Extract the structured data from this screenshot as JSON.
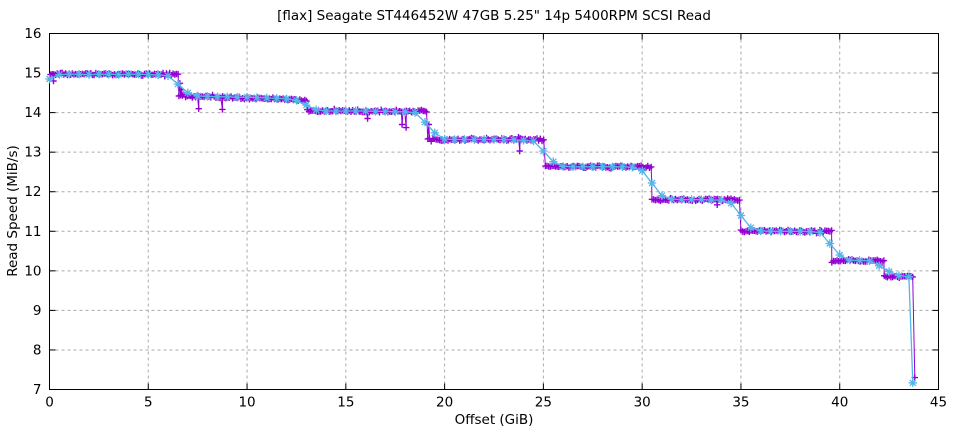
{
  "chart_data": {
    "type": "line",
    "title": "[flax] Seagate ST446452W 47GB 5.25\" 14p 5400RPM SCSI Read",
    "xlabel": "Offset (GiB)",
    "ylabel": "Read Speed (MiB/s)",
    "xlim": [
      0,
      45
    ],
    "ylim": [
      7,
      16
    ],
    "x_ticks": [
      0,
      5,
      10,
      15,
      20,
      25,
      30,
      35,
      40,
      45
    ],
    "y_ticks": [
      7,
      8,
      9,
      10,
      11,
      12,
      13,
      14,
      15,
      16
    ],
    "grid": true,
    "grid_color": "#ababab",
    "axis_color": "#000000",
    "background": "#ffffff",
    "legend": "none",
    "series": [
      {
        "name": "raw read speed samples",
        "color": "#9400d3",
        "marker": "plus",
        "line": true,
        "sample_step": 0.085,
        "jitter": 0.04,
        "segments": [
          {
            "from": 0.05,
            "to": 6.55,
            "value": 14.97
          },
          {
            "from": 6.55,
            "to": 13.05,
            "value": 14.42,
            "value_end": 14.32
          },
          {
            "from": 13.05,
            "to": 19.15,
            "value": 14.04
          },
          {
            "from": 19.15,
            "to": 25.1,
            "value": 13.32
          },
          {
            "from": 25.1,
            "to": 30.5,
            "value": 12.63
          },
          {
            "from": 30.5,
            "to": 35.0,
            "value": 11.8
          },
          {
            "from": 35.0,
            "to": 39.6,
            "value": 11.0
          },
          {
            "from": 39.6,
            "to": 42.25,
            "value": 10.26
          },
          {
            "from": 42.25,
            "to": 43.75,
            "value": 9.85
          }
        ],
        "outliers": [
          [
            0.2,
            14.8
          ],
          [
            6.6,
            14.74
          ],
          [
            6.68,
            14.58
          ],
          [
            7.55,
            14.1
          ],
          [
            8.75,
            14.08
          ],
          [
            16.1,
            13.85
          ],
          [
            17.85,
            13.7
          ],
          [
            18.05,
            13.62
          ],
          [
            19.2,
            13.7
          ],
          [
            23.8,
            13.03
          ],
          [
            33.8,
            11.67
          ]
        ],
        "tail": [
          [
            43.8,
            7.3
          ]
        ]
      },
      {
        "name": "smoothed read speed",
        "color": "#56b4e9",
        "marker": "asterisk",
        "line": true,
        "points": [
          [
            0,
            14.85
          ],
          [
            0.5,
            14.96
          ],
          [
            1,
            14.97
          ],
          [
            1.5,
            14.97
          ],
          [
            2,
            14.96
          ],
          [
            2.5,
            14.97
          ],
          [
            3,
            14.97
          ],
          [
            3.5,
            14.96
          ],
          [
            4,
            14.97
          ],
          [
            4.5,
            14.97
          ],
          [
            5,
            14.96
          ],
          [
            5.5,
            14.95
          ],
          [
            6,
            14.93
          ],
          [
            6.5,
            14.72
          ],
          [
            7,
            14.5
          ],
          [
            7.5,
            14.42
          ],
          [
            8,
            14.41
          ],
          [
            8.5,
            14.4
          ],
          [
            9,
            14.4
          ],
          [
            9.5,
            14.39
          ],
          [
            10,
            14.39
          ],
          [
            10.5,
            14.38
          ],
          [
            11,
            14.37
          ],
          [
            11.5,
            14.36
          ],
          [
            12,
            14.35
          ],
          [
            12.5,
            14.31
          ],
          [
            13,
            14.19
          ],
          [
            13.5,
            14.07
          ],
          [
            14,
            14.04
          ],
          [
            14.5,
            14.04
          ],
          [
            15,
            14.04
          ],
          [
            15.5,
            14.04
          ],
          [
            16,
            14.04
          ],
          [
            16.5,
            14.03
          ],
          [
            17,
            14.03
          ],
          [
            17.5,
            14.02
          ],
          [
            18,
            14.02
          ],
          [
            18.5,
            14.0
          ],
          [
            19,
            13.76
          ],
          [
            19.5,
            13.49
          ],
          [
            20,
            13.33
          ],
          [
            20.5,
            13.32
          ],
          [
            21,
            13.32
          ],
          [
            21.5,
            13.32
          ],
          [
            22,
            13.32
          ],
          [
            22.5,
            13.32
          ],
          [
            23,
            13.32
          ],
          [
            23.5,
            13.31
          ],
          [
            24,
            13.3
          ],
          [
            24.5,
            13.28
          ],
          [
            25,
            13.03
          ],
          [
            25.5,
            12.76
          ],
          [
            26,
            12.64
          ],
          [
            26.5,
            12.63
          ],
          [
            27,
            12.63
          ],
          [
            27.5,
            12.63
          ],
          [
            28,
            12.63
          ],
          [
            28.5,
            12.63
          ],
          [
            29,
            12.63
          ],
          [
            29.5,
            12.62
          ],
          [
            30,
            12.53
          ],
          [
            30.5,
            12.22
          ],
          [
            31,
            11.9
          ],
          [
            31.5,
            11.81
          ],
          [
            32,
            11.8
          ],
          [
            32.5,
            11.8
          ],
          [
            33,
            11.8
          ],
          [
            33.5,
            11.79
          ],
          [
            34,
            11.79
          ],
          [
            34.5,
            11.71
          ],
          [
            35,
            11.4
          ],
          [
            35.5,
            11.09
          ],
          [
            36,
            11.01
          ],
          [
            36.5,
            11.0
          ],
          [
            37,
            11.0
          ],
          [
            37.5,
            11.0
          ],
          [
            38,
            11.0
          ],
          [
            38.5,
            10.99
          ],
          [
            39,
            10.97
          ],
          [
            39.5,
            10.69
          ],
          [
            40,
            10.4
          ],
          [
            40.5,
            10.27
          ],
          [
            41,
            10.26
          ],
          [
            41.5,
            10.25
          ],
          [
            42,
            10.13
          ],
          [
            42.5,
            9.98
          ],
          [
            43,
            9.88
          ],
          [
            43.5,
            9.85
          ],
          [
            43.7,
            7.17
          ]
        ]
      }
    ]
  }
}
